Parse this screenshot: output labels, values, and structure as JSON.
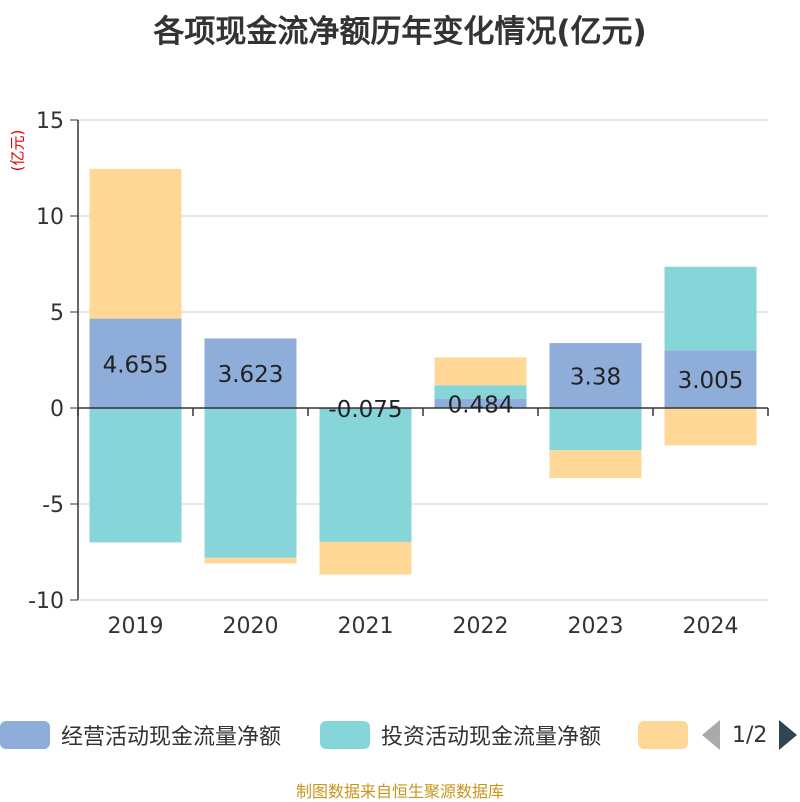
{
  "title": "各项现金流净额历年变化情况(亿元)",
  "unit_label": "(亿元)",
  "colors": {
    "operating": "#8eadd9",
    "investing": "#86d5d8",
    "financing": "#ffd797",
    "unit_text": "#e00000",
    "footer_text": "#c8961e"
  },
  "legend": {
    "items": [
      {
        "name": "经营活动现金流量净额"
      },
      {
        "name": "投资活动现金流量净额"
      },
      {
        "name": ""
      }
    ],
    "page": "1/2"
  },
  "footer": "制图数据来自恒生聚源数据库",
  "chart_data": {
    "type": "bar",
    "stacked": true,
    "categories": [
      "2019",
      "2020",
      "2021",
      "2022",
      "2023",
      "2024"
    ],
    "series": [
      {
        "name": "经营活动现金流量净额",
        "values": [
          4.655,
          3.623,
          -0.075,
          0.484,
          3.38,
          3.005
        ],
        "labels": [
          "4.655",
          "3.623",
          "-0.075",
          "0.484",
          "3.38",
          "3.005"
        ]
      },
      {
        "name": "投资活动现金流量净额",
        "values": [
          -7.0,
          -7.8,
          -6.9,
          0.7,
          -2.2,
          4.35
        ]
      },
      {
        "values": [
          7.8,
          -0.3,
          -1.7,
          1.45,
          -1.45,
          -1.95
        ]
      }
    ],
    "ylim": [
      -10,
      15
    ],
    "yticks": [
      -10,
      -5,
      0,
      5,
      10,
      15
    ],
    "grid": true,
    "legend_position": "bottom"
  }
}
